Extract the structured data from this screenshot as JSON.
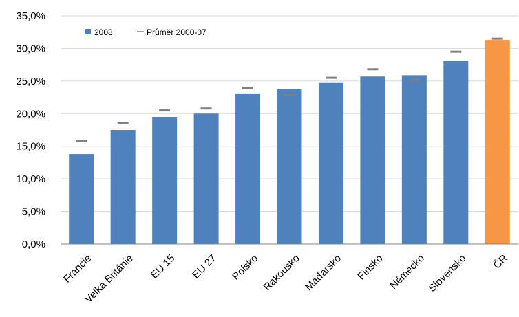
{
  "chart_data": {
    "type": "bar",
    "title": "",
    "xlabel": "",
    "ylabel": "",
    "ylim": [
      0,
      35
    ],
    "y_tick_labels": [
      "0,0%",
      "5,0%",
      "10,0%",
      "15,0%",
      "20,0%",
      "25,0%",
      "30,0%",
      "35,0%"
    ],
    "grid": true,
    "legend_position": "top-left",
    "categories": [
      "Francie",
      "Velká Británie",
      "EU 15",
      "EU 27",
      "Polsko",
      "Rakousko",
      "Maďarsko",
      "Finsko",
      "Německo",
      "Slovensko",
      "ČR"
    ],
    "series": [
      {
        "name": "2008",
        "type": "bar",
        "values": [
          13.8,
          17.5,
          19.5,
          20.0,
          23.1,
          23.8,
          24.8,
          25.7,
          25.9,
          28.1,
          31.3
        ],
        "color": "#4f81bd",
        "highlight": {
          "category": "ČR",
          "color": "#f79646"
        }
      },
      {
        "name": "Průměr 2000-07",
        "type": "marker",
        "values": [
          15.8,
          18.5,
          20.5,
          20.8,
          23.9,
          22.9,
          25.5,
          26.8,
          25.2,
          29.5,
          31.5
        ],
        "color": "#808080"
      }
    ]
  }
}
